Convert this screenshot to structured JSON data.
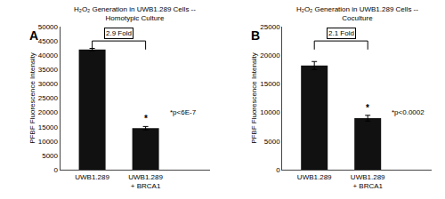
{
  "chart_data": [
    {
      "type": "bar",
      "title": "H₂O₂ Generation in UWB1.289 Cells --\nHomotypic Culture",
      "categories": [
        "UWB1.289",
        "UWB1.289\n+ BRCA1"
      ],
      "values": [
        42000,
        14500
      ],
      "errors": [
        400,
        600
      ],
      "color": "#111111",
      "ylim": [
        0,
        50000
      ],
      "yticks": [
        0,
        5000,
        10000,
        15000,
        20000,
        25000,
        30000,
        35000,
        40000,
        45000,
        50000
      ],
      "ylabel": "PFBF Fluorescence Intensity",
      "grid": false,
      "panel_label": "A",
      "fold_label": "2.9 Fold",
      "pvalue_label": "*p<6E-7",
      "significance_mark": "*"
    },
    {
      "type": "bar",
      "title": "H₂O₂ Generation in UWB1.289 Cells --\nCoculture",
      "categories": [
        "UWB1.289",
        "UWB1.289\n+ BRCA1"
      ],
      "values": [
        18200,
        9000
      ],
      "errors": [
        700,
        500
      ],
      "color": "#111111",
      "ylim": [
        0,
        25000
      ],
      "yticks": [
        0,
        5000,
        10000,
        15000,
        20000,
        25000
      ],
      "ylabel": "PFBF Fluorescence Intensity",
      "grid": false,
      "panel_label": "B",
      "fold_label": "2.1 Fold",
      "pvalue_label": "*p<0.0002",
      "significance_mark": "*"
    }
  ]
}
